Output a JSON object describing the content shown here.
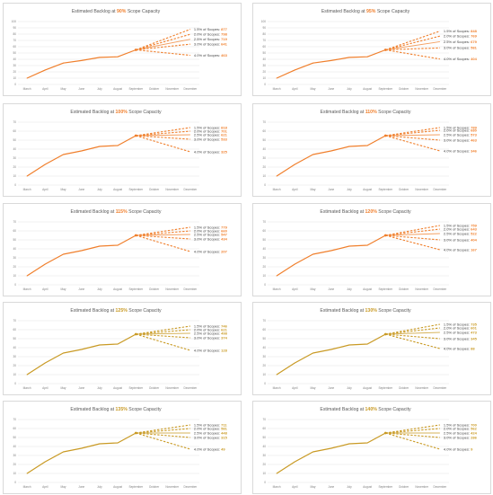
{
  "months": [
    "March",
    "April",
    "May",
    "June",
    "July",
    "August",
    "September",
    "October",
    "November",
    "December"
  ],
  "y_ticks": [
    "0",
    "10",
    "20",
    "30",
    "40",
    "50",
    "60",
    "70",
    "80",
    "90",
    "100"
  ],
  "history": [
    10,
    23,
    34,
    38,
    43,
    44,
    55
  ],
  "labels": {
    "title_prefix": "Estimated Backlog at ",
    "title_suffix": " Scope Capacity",
    "scope_suffix": "% of Scopes: "
  },
  "colors": {
    "orange": "#f07f2c",
    "olive": "#c99a24",
    "grid": "#d9d9d9"
  },
  "chart_data": [
    {
      "type": "line",
      "capacity": "90%",
      "color": "#f07f2c",
      "ylim": [
        0,
        100
      ],
      "series": [
        {
          "name": "1.5",
          "value": "877",
          "end": 87.7
        },
        {
          "name": "2.0",
          "value": "798",
          "end": 79.8
        },
        {
          "name": "2.5",
          "value": "719",
          "end": 71.9
        },
        {
          "name": "3.0",
          "value": "641",
          "end": 64.1
        },
        {
          "name": "4.0",
          "value": "463",
          "end": 46.3
        }
      ]
    },
    {
      "type": "line",
      "capacity": "95%",
      "color": "#f07f2c",
      "ylim": [
        0,
        100
      ],
      "series": [
        {
          "name": "1.5",
          "value": "848",
          "end": 84.8
        },
        {
          "name": "2.0",
          "value": "769",
          "end": 76.9
        },
        {
          "name": "2.5",
          "value": "679",
          "end": 67.9
        },
        {
          "name": "3.0",
          "value": "581",
          "end": 58.1
        },
        {
          "name": "4.0",
          "value": "404",
          "end": 40.4
        }
      ]
    },
    {
      "type": "line",
      "capacity": "100%",
      "color": "#f07f2c",
      "ylim": [
        0,
        70
      ],
      "series": [
        {
          "name": "1.5",
          "value": "818",
          "end": 64
        },
        {
          "name": "2.0",
          "value": "701",
          "end": 60
        },
        {
          "name": "2.5",
          "value": "621",
          "end": 56
        },
        {
          "name": "3.0",
          "value": "533",
          "end": 51
        },
        {
          "name": "4.0",
          "value": "325",
          "end": 37
        }
      ]
    },
    {
      "type": "line",
      "capacity": "110%",
      "color": "#f07f2c",
      "ylim": [
        0,
        70
      ],
      "series": [
        {
          "name": "1.5",
          "value": "789",
          "end": 64
        },
        {
          "name": "2.0",
          "value": "680",
          "end": 61
        },
        {
          "name": "2.5",
          "value": "573",
          "end": 56
        },
        {
          "name": "3.0",
          "value": "463",
          "end": 50
        },
        {
          "name": "4.0",
          "value": "346",
          "end": 38
        }
      ]
    },
    {
      "type": "line",
      "capacity": "115%",
      "color": "#f07f2c",
      "ylim": [
        0,
        70
      ],
      "series": [
        {
          "name": "1.5",
          "value": "779",
          "end": 64
        },
        {
          "name": "2.0",
          "value": "660",
          "end": 60
        },
        {
          "name": "2.5",
          "value": "547",
          "end": 56
        },
        {
          "name": "3.0",
          "value": "434",
          "end": 51
        },
        {
          "name": "4.0",
          "value": "207",
          "end": 37
        }
      ]
    },
    {
      "type": "line",
      "capacity": "120%",
      "color": "#f07f2c",
      "ylim": [
        0,
        70
      ],
      "series": [
        {
          "name": "1.5",
          "value": "759",
          "end": 66
        },
        {
          "name": "2.0",
          "value": "643",
          "end": 62
        },
        {
          "name": "2.5",
          "value": "522",
          "end": 57
        },
        {
          "name": "3.0",
          "value": "404",
          "end": 50
        },
        {
          "name": "4.0",
          "value": "167",
          "end": 39
        }
      ]
    },
    {
      "type": "line",
      "capacity": "125%",
      "color": "#c99a24",
      "ylim": [
        0,
        70
      ],
      "series": [
        {
          "name": "1.5",
          "value": "746",
          "end": 64
        },
        {
          "name": "2.0",
          "value": "621",
          "end": 60
        },
        {
          "name": "2.5",
          "value": "498",
          "end": 56
        },
        {
          "name": "3.0",
          "value": "374",
          "end": 51
        },
        {
          "name": "4.0",
          "value": "128",
          "end": 37
        }
      ]
    },
    {
      "type": "line",
      "capacity": "130%",
      "color": "#c99a24",
      "ylim": [
        0,
        70
      ],
      "series": [
        {
          "name": "1.5",
          "value": "735",
          "end": 66
        },
        {
          "name": "2.0",
          "value": "601",
          "end": 62
        },
        {
          "name": "2.5",
          "value": "473",
          "end": 57
        },
        {
          "name": "3.0",
          "value": "345",
          "end": 50
        },
        {
          "name": "4.0",
          "value": "88",
          "end": 39
        }
      ]
    },
    {
      "type": "line",
      "capacity": "135%",
      "color": "#c99a24",
      "ylim": [
        0,
        70
      ],
      "series": [
        {
          "name": "1.5",
          "value": "711",
          "end": 64
        },
        {
          "name": "2.0",
          "value": "581",
          "end": 60
        },
        {
          "name": "2.5",
          "value": "448",
          "end": 55
        },
        {
          "name": "3.0",
          "value": "315",
          "end": 50
        },
        {
          "name": "4.0",
          "value": "49",
          "end": 37
        }
      ]
    },
    {
      "type": "line",
      "capacity": "140%",
      "color": "#c99a24",
      "ylim": [
        0,
        70
      ],
      "series": [
        {
          "name": "1.5",
          "value": "700",
          "end": 64
        },
        {
          "name": "2.0",
          "value": "562",
          "end": 60
        },
        {
          "name": "2.5",
          "value": "424",
          "end": 55
        },
        {
          "name": "3.0",
          "value": "286",
          "end": 50
        },
        {
          "name": "4.0",
          "value": "9",
          "end": 37
        }
      ]
    }
  ]
}
